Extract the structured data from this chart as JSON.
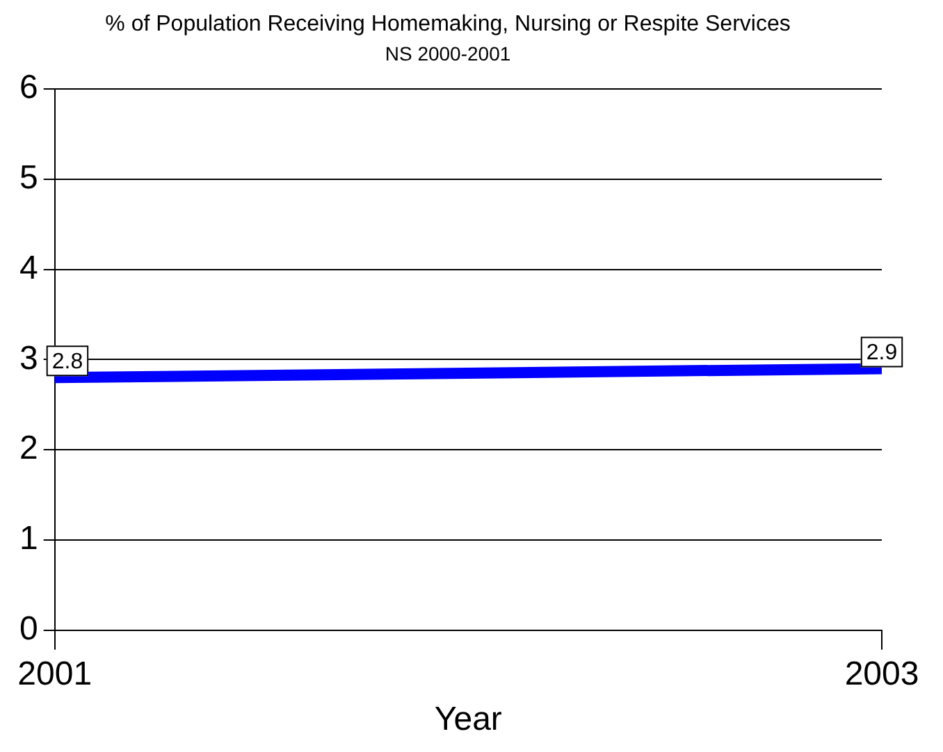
{
  "chart_data": {
    "type": "line",
    "title": "% of Population Receiving Homemaking, Nursing or Respite Services",
    "subtitle": "NS 2000-2001",
    "xlabel": "Year",
    "x": [
      2001,
      2003
    ],
    "series": [
      {
        "color": "#0000ff",
        "values": [
          2.8,
          2.9
        ]
      }
    ],
    "xlim": [
      2001,
      2003
    ],
    "xticks": [
      2001,
      2003
    ],
    "ylim": [
      0,
      6
    ],
    "yticks": [
      0,
      1,
      2,
      3,
      4,
      5,
      6
    ],
    "grid": "y",
    "legend": false,
    "marker": "none",
    "line_style": "solid",
    "data_labels": true
  }
}
